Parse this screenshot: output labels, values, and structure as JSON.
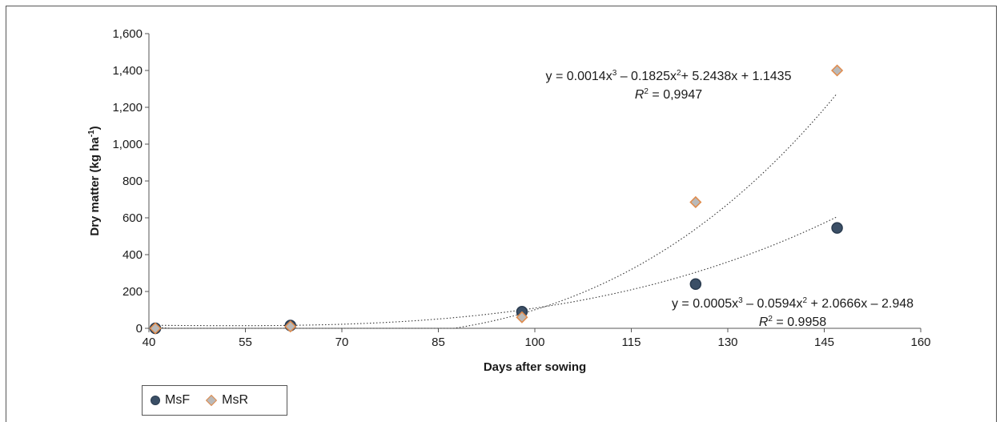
{
  "chart_data": {
    "type": "scatter",
    "xlabel": "Days after sowing",
    "ylabel": "Dry matter (kg ha",
    "ylabel_sup": "-1",
    "ylabel_end": ")",
    "xlim": [
      40,
      160
    ],
    "ylim": [
      0,
      1600
    ],
    "x_ticks": [
      40,
      55,
      70,
      85,
      100,
      115,
      130,
      145,
      160
    ],
    "x_tick_labels": [
      "40",
      "55",
      "70",
      "85",
      "100",
      "115",
      "130",
      "145",
      "160"
    ],
    "y_ticks": [
      0,
      200,
      400,
      600,
      800,
      1000,
      1200,
      1400,
      1600
    ],
    "y_tick_labels": [
      "0",
      "200",
      "400",
      "600",
      "800",
      "1,000",
      "1,200",
      "1,400",
      "1,600"
    ],
    "grid": false,
    "legend_position": "bottom-left",
    "series": [
      {
        "name": "MsF",
        "marker": "circle",
        "color": "#3b4f66",
        "x": [
          41,
          62,
          98,
          125,
          147
        ],
        "y": [
          0,
          15,
          90,
          240,
          545
        ],
        "trendline": {
          "type": "poly3",
          "coef": [
            -2.948,
            2.0666,
            -0.0594,
            0.0005
          ]
        }
      },
      {
        "name": "MsR",
        "marker": "diamond",
        "color": "#b9b9b9",
        "edge_color": "#e08a4a",
        "x": [
          41,
          62,
          98,
          125,
          147
        ],
        "y": [
          0,
          10,
          60,
          685,
          1400
        ],
        "trendline": {
          "type": "poly3",
          "coef": [
            1.1435,
            5.2438,
            -0.1825,
            0.0014
          ]
        }
      }
    ],
    "annotations": [
      {
        "id": "msr-eq",
        "parts": [
          "y = 0.0014x",
          "3",
          " – 0.1825x",
          "2",
          "+ 5.2438x + 1.1435"
        ],
        "r2_label": "R",
        "r2_sup": "2",
        "r2_value": " = 0,9947"
      },
      {
        "id": "msf-eq",
        "parts": [
          "y = 0.0005x",
          "3",
          " – 0.0594x",
          "2",
          " + 2.0666x – 2.948"
        ],
        "r2_label": "R",
        "r2_sup": "2",
        "r2_value": " = 0.9958"
      }
    ]
  }
}
